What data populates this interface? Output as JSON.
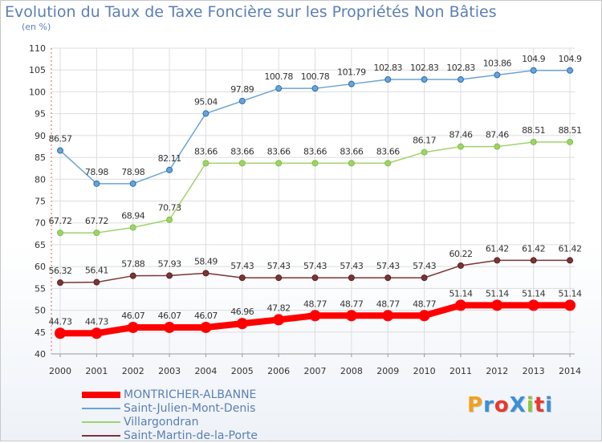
{
  "title": "Evolution du Taux de Taxe Foncière sur les Propriétés Non Bâties",
  "subtitle": "(en %)",
  "logo": {
    "text": "ProXiti",
    "colors": [
      "#f2a11b",
      "#3a8fd8",
      "#e8392d",
      "#3a8fd8",
      "#8cc63f",
      "#e8392d",
      "#3a8fd8"
    ]
  },
  "colors": {
    "title": "#5b7fb5",
    "grid": "#dddddd",
    "axis_text": "#333333"
  },
  "chart_data": {
    "type": "line",
    "title": "Evolution du Taux de Taxe Foncière sur les Propriétés Non Bâties",
    "ylabel": "(en %)",
    "xlabel": "",
    "ylim": [
      40,
      110
    ],
    "yticks": [
      40,
      45,
      50,
      55,
      60,
      65,
      70,
      75,
      80,
      85,
      90,
      95,
      100,
      105,
      110
    ],
    "categories": [
      "2000",
      "2001",
      "2002",
      "2003",
      "2004",
      "2005",
      "2006",
      "2007",
      "2008",
      "2009",
      "2010",
      "2011",
      "2012",
      "2013",
      "2014"
    ],
    "grid": true,
    "legend_position": "bottom-left",
    "series": [
      {
        "name": "MONTRICHER-ALBANNE",
        "color": "#ff0000",
        "emphasis": "thick",
        "values": [
          44.73,
          44.73,
          46.07,
          46.07,
          46.07,
          46.96,
          47.82,
          48.77,
          48.77,
          48.77,
          48.77,
          51.14,
          51.14,
          51.14,
          51.14
        ],
        "labels": [
          "44.73",
          "44.73",
          "46.07",
          "46.07",
          "46.07",
          "46.96",
          "47.82",
          "48.77",
          "48.77",
          "48.77",
          "48.77",
          "51.14",
          "51.14",
          "51.14",
          "51.14"
        ]
      },
      {
        "name": "Saint-Julien-Mont-Denis",
        "color": "#6aa3d6",
        "marker": "#2a6fb0",
        "values": [
          86.57,
          78.98,
          78.98,
          82.11,
          95.04,
          97.89,
          100.78,
          100.78,
          101.79,
          102.83,
          102.83,
          102.83,
          103.86,
          104.9,
          104.9
        ],
        "labels": [
          "86.57",
          "78.98",
          "78.98",
          "82.11",
          "95.04",
          "97.89",
          "100.78",
          "100.78",
          "101.79",
          "102.83",
          "102.83",
          "102.83",
          "103.86",
          "104.9",
          "104.9"
        ]
      },
      {
        "name": "Villargondran",
        "color": "#9ed36a",
        "marker": "#7bc143",
        "values": [
          67.72,
          67.72,
          68.94,
          70.73,
          83.66,
          83.66,
          83.66,
          83.66,
          83.66,
          83.66,
          86.17,
          87.46,
          87.46,
          88.51,
          88.51
        ],
        "labels": [
          "67.72",
          "67.72",
          "68.94",
          "70.73",
          "83.66",
          "83.66",
          "83.66",
          "83.66",
          "83.66",
          "83.66",
          "86.17",
          "87.46",
          "87.46",
          "88.51",
          "88.51"
        ]
      },
      {
        "name": "Saint-Martin-de-la-Porte",
        "color": "#7a3535",
        "marker": "#5a1f1f",
        "values": [
          56.32,
          56.41,
          57.88,
          57.93,
          58.49,
          57.43,
          57.43,
          57.43,
          57.43,
          57.43,
          57.43,
          60.22,
          61.42,
          61.42,
          61.42
        ],
        "labels": [
          "56.32",
          "56.41",
          "57.88",
          "57.93",
          "58.49",
          "57.43",
          "57.43",
          "57.43",
          "57.43",
          "57.43",
          "57.43",
          "60.22",
          "61.42",
          "61.42",
          "61.42"
        ]
      }
    ]
  }
}
